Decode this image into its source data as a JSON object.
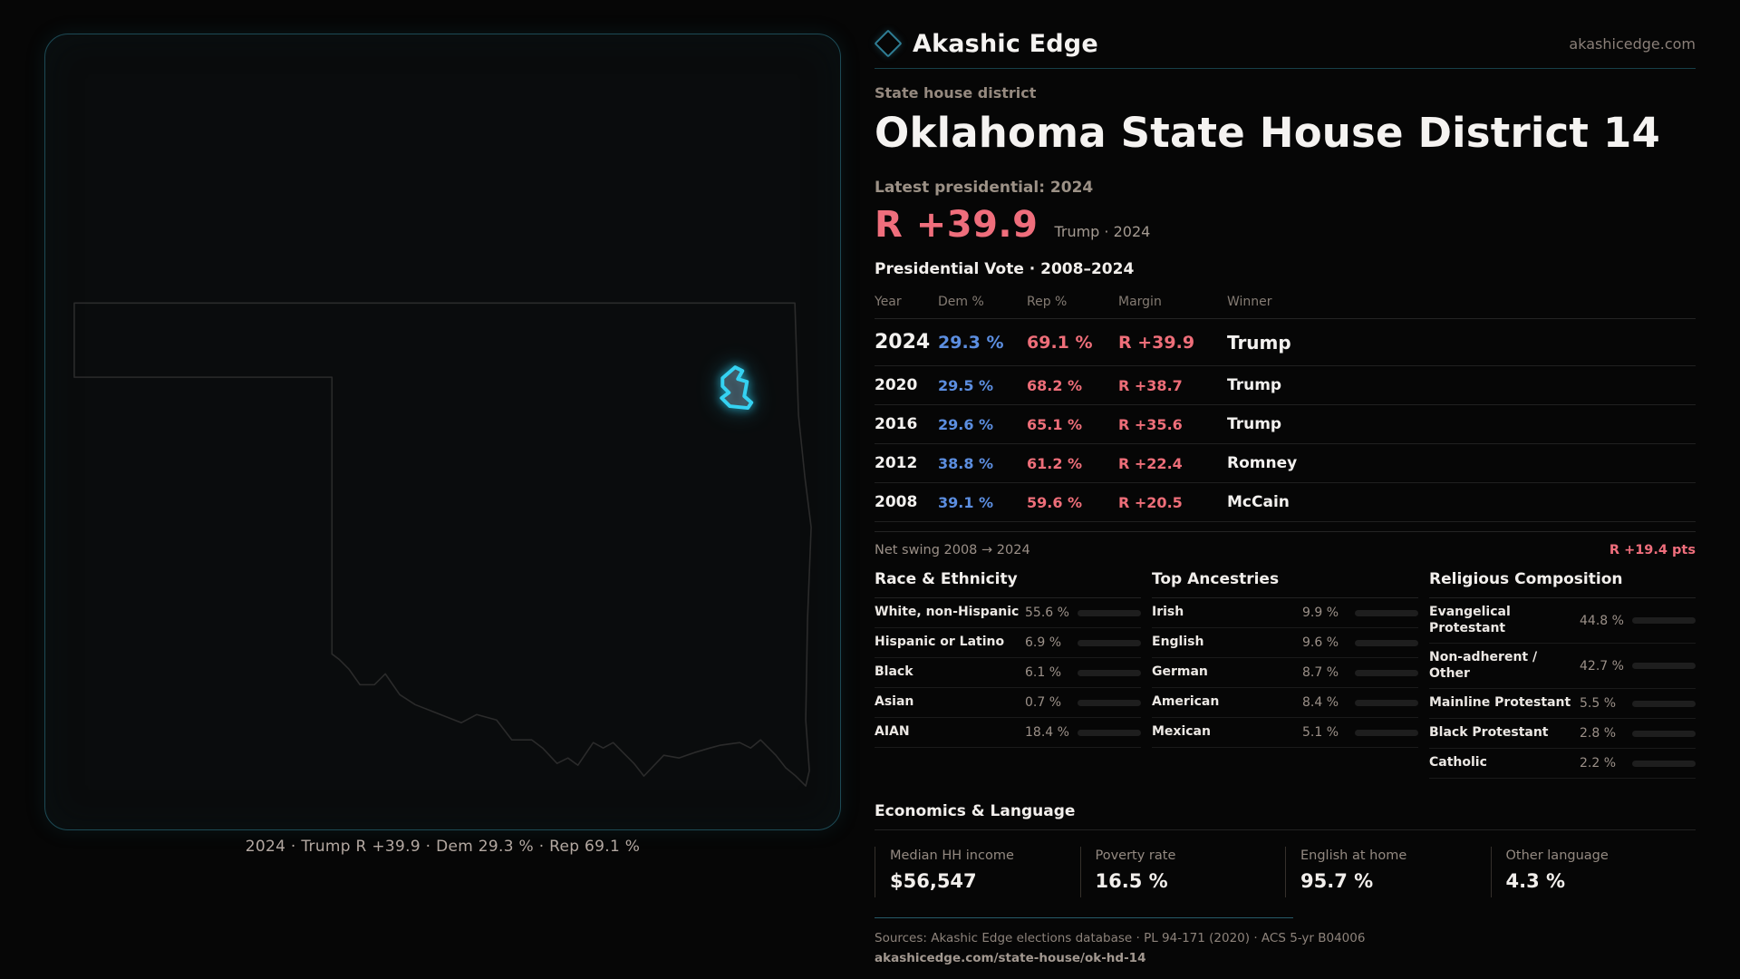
{
  "brand": {
    "name": "Akashic Edge",
    "domain": "akashicedge.com"
  },
  "page": {
    "eyebrow": "State house district",
    "title": "Oklahoma State House District 14",
    "latest_label": "Latest presidential: 2024",
    "headline_margin": "R +39.9",
    "headline_sub": "Trump · 2024"
  },
  "map": {
    "caption": "2024 · Trump R +39.9 · Dem 29.3 % · Rep 69.1 %",
    "district_color": "#35d2f2"
  },
  "vote_table": {
    "title": "Presidential Vote · 2008–2024",
    "columns": [
      "Year",
      "Dem %",
      "Rep %",
      "Margin",
      "Winner"
    ],
    "rows": [
      {
        "year": "2024",
        "dem": "29.3 %",
        "rep": "69.1 %",
        "margin": "R +39.9",
        "winner": "Trump"
      },
      {
        "year": "2020",
        "dem": "29.5 %",
        "rep": "68.2 %",
        "margin": "R +38.7",
        "winner": "Trump"
      },
      {
        "year": "2016",
        "dem": "29.6 %",
        "rep": "65.1 %",
        "margin": "R +35.6",
        "winner": "Trump"
      },
      {
        "year": "2012",
        "dem": "38.8 %",
        "rep": "61.2 %",
        "margin": "R +22.4",
        "winner": "Romney"
      },
      {
        "year": "2008",
        "dem": "39.1 %",
        "rep": "59.6 %",
        "margin": "R +20.5",
        "winner": "McCain"
      }
    ]
  },
  "net_swing": {
    "label": "Net swing 2008 → 2024",
    "value": "R +19.4 pts"
  },
  "demographics": {
    "sections": [
      {
        "title": "Race & Ethnicity",
        "rows": [
          {
            "label": "White, non-Hispanic",
            "value": "55.6 %",
            "pct": 55.6,
            "color": "#9db3cd"
          },
          {
            "label": "Hispanic or Latino",
            "value": "6.9 %",
            "pct": 6.9,
            "color": "#e0a437"
          },
          {
            "label": "Black",
            "value": "6.1 %",
            "pct": 6.1,
            "color": "#8678e8"
          },
          {
            "label": "Asian",
            "value": "0.7 %",
            "pct": 0.7,
            "color": "#9db3cd"
          },
          {
            "label": "AIAN",
            "value": "18.4 %",
            "pct": 18.4,
            "color": "#dc8f28"
          }
        ]
      },
      {
        "title": "Top Ancestries",
        "rows": [
          {
            "label": "Irish",
            "value": "9.9 %",
            "pct": 9.9,
            "color": "#97a9c4"
          },
          {
            "label": "English",
            "value": "9.6 %",
            "pct": 9.6,
            "color": "#97a9c4"
          },
          {
            "label": "German",
            "value": "8.7 %",
            "pct": 8.7,
            "color": "#97a9c4"
          },
          {
            "label": "American",
            "value": "8.4 %",
            "pct": 8.4,
            "color": "#97a9c4"
          },
          {
            "label": "Mexican",
            "value": "5.1 %",
            "pct": 5.1,
            "color": "#eab308"
          }
        ]
      },
      {
        "title": "Religious Composition",
        "rows": [
          {
            "label": "Evangelical Protestant",
            "value": "44.8 %",
            "pct": 44.8,
            "color": "#e25f6b"
          },
          {
            "label": "Non-adherent / Other",
            "value": "42.7 %",
            "pct": 42.7,
            "color": "#5d6671"
          },
          {
            "label": "Mainline Protestant",
            "value": "5.5 %",
            "pct": 5.5,
            "color": "#3f83e8"
          },
          {
            "label": "Black Protestant",
            "value": "2.8 %",
            "pct": 2.8,
            "color": "#8678e8"
          },
          {
            "label": "Catholic",
            "value": "2.2 %",
            "pct": 2.2,
            "color": "#d9a514"
          }
        ]
      }
    ]
  },
  "economics": {
    "title": "Economics & Language",
    "stats": [
      {
        "label": "Median HH income",
        "value": "$56,547"
      },
      {
        "label": "Poverty rate",
        "value": "16.5 %"
      },
      {
        "label": "English at home",
        "value": "95.7 %"
      },
      {
        "label": "Other language",
        "value": "4.3 %"
      }
    ]
  },
  "footer": {
    "sources": "Sources: Akashic Edge elections database · PL 94-171 (2020) · ACS 5-yr B04006",
    "permalink": "akashicedge.com/state-house/ok-hd-14"
  },
  "colors": {
    "rep_red": "#ef6e7c",
    "dem_blue": "#5c8ee0",
    "accent_teal": "#1d4a55",
    "district_cyan": "#35d2f2",
    "background": "#060606"
  }
}
